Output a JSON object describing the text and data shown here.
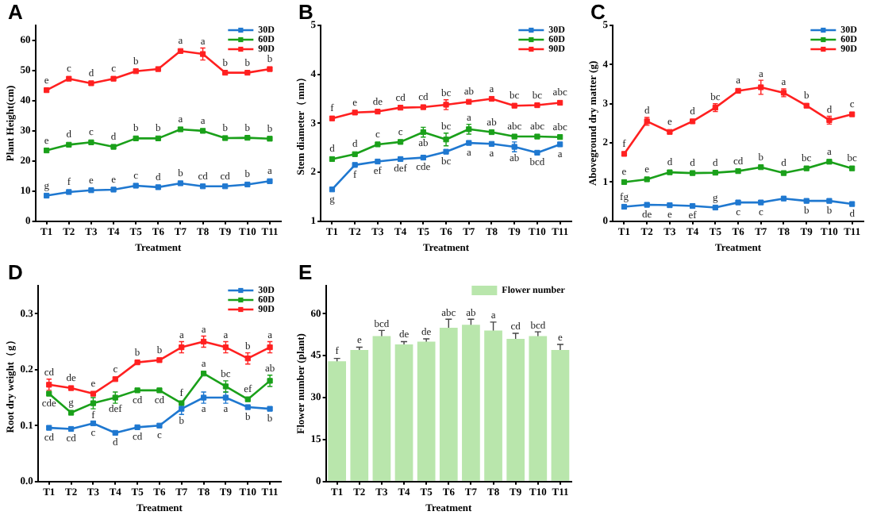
{
  "chart_data": [
    {
      "type": "line",
      "title": "A",
      "xlabel": "Treatment",
      "ylabel": "Plant Height(cm)",
      "categories": [
        "T1",
        "T2",
        "T3",
        "T4",
        "T5",
        "T6",
        "T7",
        "T8",
        "T9",
        "T10",
        "T11"
      ],
      "ylim": [
        0,
        65
      ],
      "yticks": [
        0,
        10,
        20,
        30,
        40,
        50,
        60
      ],
      "marker": "square",
      "legend": "top right",
      "series": [
        {
          "name": "30D",
          "color": "#1f78d0",
          "values": [
            8.5,
            9.7,
            10.3,
            10.5,
            11.8,
            11.3,
            12.6,
            11.6,
            11.6,
            12.2,
            13.3
          ],
          "value_labels": [
            "g",
            "f",
            "e",
            "e",
            "c",
            "d",
            "b",
            "cd",
            "cd",
            "b",
            "a"
          ]
        },
        {
          "name": "60D",
          "color": "#1aa01a",
          "values": [
            23.5,
            25.4,
            26.2,
            24.7,
            27.5,
            27.5,
            30.5,
            30,
            27.6,
            27.7,
            27.4
          ],
          "value_labels": [
            "e",
            "d",
            "c",
            "d",
            "b",
            "b",
            "a",
            "a",
            "b",
            "b",
            "b"
          ]
        },
        {
          "name": "90D",
          "color": "#ff2020",
          "values": [
            43.5,
            47.3,
            45.8,
            47.3,
            49.8,
            50.5,
            56.5,
            55.5,
            49.3,
            49.3,
            50.5
          ],
          "errors": [
            null,
            null,
            null,
            null,
            null,
            null,
            null,
            2,
            null,
            null,
            null
          ],
          "value_labels": [
            "e",
            "c",
            "d",
            "c",
            "b",
            null,
            "a",
            "a",
            "b",
            "b",
            "b"
          ]
        }
      ]
    },
    {
      "type": "line",
      "title": "B",
      "xlabel": "Treatment",
      "ylabel": "Stem diameter（mm）",
      "categories": [
        "T1",
        "T2",
        "T3",
        "T4",
        "T5",
        "T6",
        "T7",
        "T8",
        "T9",
        "T10",
        "T11"
      ],
      "ylim": [
        1,
        5
      ],
      "yticks": [
        1,
        2,
        3,
        4,
        5
      ],
      "marker": "square",
      "legend": "top right",
      "series": [
        {
          "name": "30D",
          "color": "#1f78d0",
          "values": [
            1.65,
            2.15,
            2.22,
            2.27,
            2.3,
            2.42,
            2.6,
            2.58,
            2.52,
            2.4,
            2.57
          ],
          "errors": [
            null,
            null,
            null,
            null,
            null,
            null,
            null,
            null,
            0.1,
            null,
            null
          ],
          "value_labels": [
            "g",
            "f",
            "ef",
            "def",
            "cde",
            "bc",
            "a",
            "a",
            "ab",
            "bcd",
            "a"
          ]
        },
        {
          "name": "60D",
          "color": "#1aa01a",
          "values": [
            2.27,
            2.37,
            2.57,
            2.62,
            2.82,
            2.67,
            2.88,
            2.82,
            2.73,
            2.73,
            2.72
          ],
          "errors": [
            null,
            null,
            null,
            null,
            0.1,
            0.13,
            0.1,
            null,
            null,
            null,
            null
          ],
          "value_labels": [
            "d",
            "d",
            "c",
            "c",
            "ab",
            "bc",
            "a",
            "ab",
            "abc",
            "abc",
            "abc"
          ]
        },
        {
          "name": "90D",
          "color": "#ff2020",
          "values": [
            3.1,
            3.22,
            3.24,
            3.32,
            3.33,
            3.38,
            3.44,
            3.5,
            3.36,
            3.37,
            3.42
          ],
          "errors": [
            null,
            null,
            null,
            null,
            null,
            0.1,
            null,
            null,
            null,
            null,
            null
          ],
          "value_labels": [
            "f",
            "e",
            "de",
            "cd",
            "cd",
            "bc",
            "ab",
            "a",
            "bc",
            "bc",
            "abc"
          ]
        }
      ]
    },
    {
      "type": "line",
      "title": "C",
      "xlabel": "Treatment",
      "ylabel": "Aboveground dry matter (g)",
      "categories": [
        "T1",
        "T2",
        "T3",
        "T4",
        "T5",
        "T6",
        "T7",
        "T8",
        "T9",
        "T10",
        "T11"
      ],
      "ylim": [
        0,
        5
      ],
      "yticks": [
        0,
        1,
        2,
        3,
        4,
        5
      ],
      "marker": "square",
      "legend": "top right",
      "series": [
        {
          "name": "30D",
          "color": "#1f78d0",
          "values": [
            0.37,
            0.42,
            0.41,
            0.39,
            0.35,
            0.48,
            0.48,
            0.58,
            0.52,
            0.52,
            0.44
          ],
          "value_labels": [
            "fg",
            "de",
            "e",
            "ef",
            "g",
            "c",
            "c",
            null,
            "b",
            "b",
            "d"
          ]
        },
        {
          "name": "60D",
          "color": "#1aa01a",
          "values": [
            1.0,
            1.07,
            1.25,
            1.23,
            1.24,
            1.28,
            1.38,
            1.23,
            1.35,
            1.52,
            1.35
          ],
          "value_labels": [
            "e",
            "e",
            "d",
            "d",
            "d",
            "cd",
            "b",
            "d",
            "bc",
            "a",
            "bc"
          ]
        },
        {
          "name": "90D",
          "color": "#ff2020",
          "values": [
            1.72,
            2.55,
            2.28,
            2.55,
            2.9,
            3.33,
            3.42,
            3.28,
            2.95,
            2.58,
            2.73
          ],
          "errors": [
            null,
            0.1,
            null,
            null,
            0.1,
            null,
            0.18,
            0.1,
            null,
            0.1,
            null
          ],
          "value_labels": [
            "f",
            "d",
            "e",
            "d",
            "bc",
            "a",
            "a",
            "a",
            "b",
            "d",
            "c"
          ]
        }
      ]
    },
    {
      "type": "line",
      "title": "D",
      "xlabel": "Treatment",
      "ylabel": "Root dry weight（g）",
      "categories": [
        "T1",
        "T2",
        "T3",
        "T4",
        "T5",
        "T6",
        "T7",
        "T8",
        "T9",
        "T10",
        "T11"
      ],
      "ylim": [
        0,
        0.35
      ],
      "yticks": [
        {
          "value": 0,
          "label": "0.0"
        },
        0.1,
        0.2,
        0.3
      ],
      "marker": "square",
      "legend": "top right",
      "series": [
        {
          "name": "30D",
          "color": "#1f78d0",
          "values": [
            0.096,
            0.094,
            0.104,
            0.087,
            0.097,
            0.1,
            0.13,
            0.15,
            0.15,
            0.133,
            0.13
          ],
          "errors": [
            null,
            null,
            null,
            null,
            null,
            null,
            0.01,
            0.01,
            0.01,
            null,
            null
          ],
          "value_labels": [
            "cd",
            "cd",
            "c",
            "d",
            "cd",
            "c",
            "b",
            "a",
            "a",
            "b",
            "b"
          ]
        },
        {
          "name": "60D",
          "color": "#1aa01a",
          "values": [
            0.157,
            0.123,
            0.14,
            0.15,
            0.163,
            0.163,
            0.14,
            0.193,
            0.17,
            0.147,
            0.18
          ],
          "errors": [
            null,
            null,
            0.01,
            0.01,
            null,
            null,
            null,
            null,
            0.01,
            null,
            0.01
          ],
          "value_labels": [
            "cde",
            "g",
            "f",
            "def",
            "cd",
            "cd",
            "f",
            "a",
            "bc",
            "ef",
            "ab"
          ]
        },
        {
          "name": "90D",
          "color": "#ff2020",
          "values": [
            0.173,
            0.167,
            0.157,
            0.183,
            0.213,
            0.217,
            0.24,
            0.25,
            0.24,
            0.22,
            0.24
          ],
          "errors": [
            0.01,
            null,
            null,
            null,
            null,
            null,
            0.01,
            0.01,
            0.01,
            0.01,
            0.01
          ],
          "value_labels": [
            "cd",
            "de",
            "e",
            "c",
            "b",
            "b",
            "a",
            "a",
            "a",
            "b",
            "a"
          ]
        }
      ]
    },
    {
      "type": "bar",
      "title": "E",
      "xlabel": "Treatment",
      "ylabel": "Flower number (plant)",
      "categories": [
        "T1",
        "T2",
        "T3",
        "T4",
        "T5",
        "T6",
        "T7",
        "T8",
        "T9",
        "T10",
        "T11"
      ],
      "ylim": [
        0,
        70
      ],
      "yticks": [
        0,
        15,
        30,
        45,
        60
      ],
      "legend": "top right",
      "series": [
        {
          "name": "Flower number",
          "color": "#b9e6ac",
          "values": [
            43,
            47,
            52,
            49,
            50,
            55,
            56,
            54,
            51,
            52,
            47
          ],
          "errors": [
            1,
            1,
            2,
            1,
            1,
            3,
            2,
            3,
            2,
            1.5,
            2
          ],
          "value_labels": [
            "f",
            "e",
            "bcd",
            "de",
            "de",
            "abc",
            "ab",
            "a",
            "cd",
            "bcd",
            "e"
          ]
        }
      ]
    }
  ]
}
